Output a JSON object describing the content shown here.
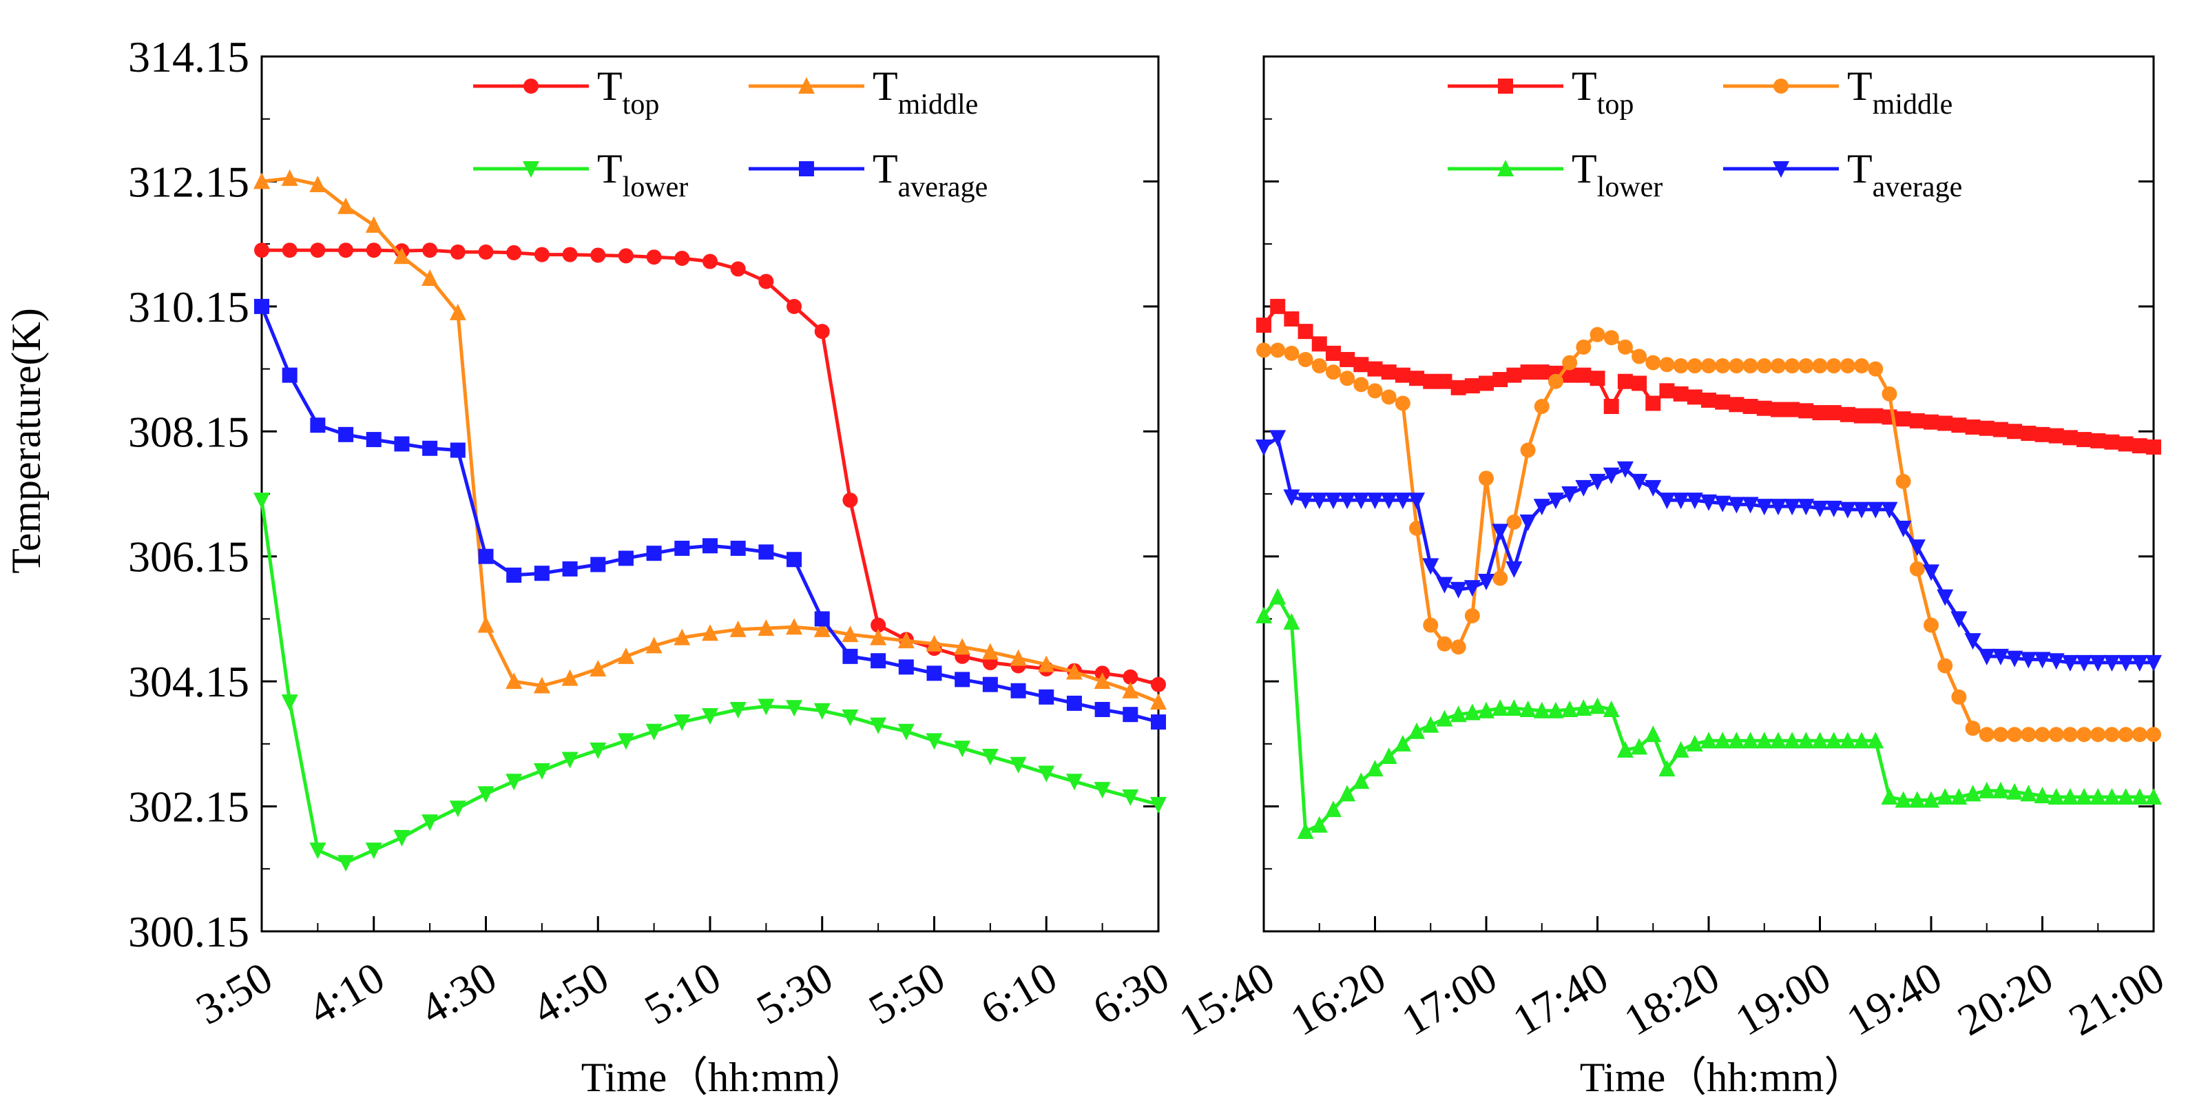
{
  "figure": {
    "ylabel": "Temperature(K)",
    "xlabel": "Time（hh:mm）"
  },
  "chart_data": [
    {
      "type": "line",
      "panel": "left",
      "xlabel": "Time（hh:mm）",
      "ylabel": "Temperature(K)",
      "x_ticks": [
        "3:50",
        "4:10",
        "4:30",
        "4:50",
        "5:10",
        "5:30",
        "5:50",
        "6:10",
        "6:30"
      ],
      "y_ticks": [
        "300.15",
        "302.15",
        "304.15",
        "306.15",
        "308.15",
        "310.15",
        "312.15",
        "314.15"
      ],
      "xlim_minutes": [
        230,
        390
      ],
      "ylim": [
        300.15,
        314.15
      ],
      "legend_position": "top-right",
      "grid": false,
      "series": [
        {
          "name": "T_top",
          "label_main": "T",
          "label_sub": "top",
          "color": "#ff1a1a",
          "marker": "circle",
          "x": [
            230,
            235,
            240,
            245,
            250,
            255,
            260,
            265,
            270,
            275,
            280,
            285,
            290,
            295,
            300,
            305,
            310,
            315,
            320,
            325,
            330,
            335,
            340,
            345,
            350,
            355,
            360,
            365,
            370,
            375,
            380,
            385,
            390
          ],
          "y": [
            311.05,
            311.05,
            311.05,
            311.05,
            311.05,
            311.04,
            311.05,
            311.02,
            311.02,
            311.01,
            310.98,
            310.98,
            310.97,
            310.96,
            310.94,
            310.92,
            310.87,
            310.75,
            310.55,
            310.15,
            309.75,
            307.05,
            305.05,
            304.82,
            304.68,
            304.55,
            304.45,
            304.4,
            304.35,
            304.32,
            304.28,
            304.22,
            304.1
          ],
          "marker_every": 1
        },
        {
          "name": "T_middle",
          "label_main": "T",
          "label_sub": "middle",
          "color": "#ff8c1a",
          "marker": "triangle-up",
          "x": [
            230,
            235,
            240,
            245,
            250,
            255,
            260,
            265,
            270,
            275,
            280,
            285,
            290,
            295,
            300,
            305,
            310,
            315,
            320,
            325,
            330,
            335,
            340,
            345,
            350,
            355,
            360,
            365,
            370,
            375,
            380,
            385,
            390
          ],
          "y": [
            312.15,
            312.2,
            312.1,
            311.75,
            311.45,
            310.95,
            310.6,
            310.05,
            305.05,
            304.15,
            304.08,
            304.2,
            304.35,
            304.55,
            304.72,
            304.85,
            304.92,
            304.98,
            305.0,
            305.02,
            304.98,
            304.9,
            304.85,
            304.8,
            304.75,
            304.7,
            304.62,
            304.52,
            304.42,
            304.3,
            304.15,
            304.0,
            303.82
          ],
          "marker_every": 1
        },
        {
          "name": "T_lower",
          "label_main": "T",
          "label_sub": "lower",
          "color": "#22ee22",
          "marker": "triangle-down",
          "x": [
            230,
            235,
            240,
            245,
            250,
            255,
            260,
            265,
            270,
            275,
            280,
            285,
            290,
            295,
            300,
            305,
            310,
            315,
            320,
            325,
            330,
            335,
            340,
            345,
            350,
            355,
            360,
            365,
            370,
            375,
            380,
            385,
            390
          ],
          "y": [
            307.05,
            303.82,
            301.45,
            301.25,
            301.45,
            301.65,
            301.9,
            302.12,
            302.35,
            302.55,
            302.72,
            302.9,
            303.05,
            303.2,
            303.35,
            303.5,
            303.6,
            303.7,
            303.75,
            303.73,
            303.68,
            303.58,
            303.45,
            303.35,
            303.2,
            303.08,
            302.95,
            302.82,
            302.68,
            302.55,
            302.42,
            302.3,
            302.18
          ],
          "marker_every": 1
        },
        {
          "name": "T_average",
          "label_main": "T",
          "label_sub": "average",
          "color": "#1a1aff",
          "marker": "square",
          "x": [
            230,
            235,
            240,
            245,
            250,
            255,
            260,
            265,
            270,
            275,
            280,
            285,
            290,
            295,
            300,
            305,
            310,
            315,
            320,
            325,
            330,
            335,
            340,
            345,
            350,
            355,
            360,
            365,
            370,
            375,
            380,
            385,
            390
          ],
          "y": [
            310.15,
            309.05,
            308.25,
            308.1,
            308.02,
            307.95,
            307.88,
            307.85,
            306.15,
            305.85,
            305.88,
            305.95,
            306.02,
            306.12,
            306.2,
            306.28,
            306.32,
            306.28,
            306.22,
            306.1,
            305.15,
            304.55,
            304.48,
            304.38,
            304.28,
            304.18,
            304.1,
            304.0,
            303.9,
            303.8,
            303.7,
            303.62,
            303.5
          ],
          "marker_every": 1
        }
      ]
    },
    {
      "type": "line",
      "panel": "right",
      "xlabel": "Time（hh:mm）",
      "x_ticks": [
        "15:40",
        "16:20",
        "17:00",
        "17:40",
        "18:20",
        "19:00",
        "19:40",
        "20:20",
        "21:00"
      ],
      "xlim_minutes": [
        940,
        1260
      ],
      "ylim": [
        300.15,
        314.15
      ],
      "legend_position": "top-right",
      "grid": false,
      "series": [
        {
          "name": "T_top",
          "label_main": "T",
          "label_sub": "top",
          "color": "#ff1a1a",
          "marker": "square",
          "x": [
            940,
            945,
            950,
            955,
            960,
            965,
            970,
            975,
            980,
            985,
            990,
            995,
            1000,
            1005,
            1010,
            1015,
            1020,
            1025,
            1030,
            1035,
            1040,
            1045,
            1050,
            1055,
            1060,
            1065,
            1070,
            1075,
            1080,
            1085,
            1090,
            1095,
            1100,
            1105,
            1110,
            1115,
            1120,
            1125,
            1130,
            1135,
            1140,
            1145,
            1150,
            1155,
            1160,
            1165,
            1170,
            1175,
            1180,
            1185,
            1190,
            1195,
            1200,
            1205,
            1210,
            1215,
            1220,
            1225,
            1230,
            1235,
            1240,
            1245,
            1250,
            1255,
            1260
          ],
          "y": [
            309.85,
            310.15,
            309.95,
            309.75,
            309.55,
            309.4,
            309.3,
            309.22,
            309.15,
            309.1,
            309.05,
            309.0,
            308.95,
            308.95,
            308.85,
            308.88,
            308.92,
            308.98,
            309.05,
            309.1,
            309.1,
            309.08,
            309.05,
            309.05,
            309.0,
            308.55,
            308.95,
            308.92,
            308.6,
            308.8,
            308.75,
            308.7,
            308.65,
            308.62,
            308.58,
            308.55,
            308.52,
            308.5,
            308.5,
            308.48,
            308.45,
            308.45,
            308.42,
            308.4,
            308.4,
            308.38,
            308.35,
            308.32,
            308.3,
            308.28,
            308.25,
            308.22,
            308.2,
            308.18,
            308.15,
            308.12,
            308.1,
            308.08,
            308.05,
            308.02,
            308.0,
            307.98,
            307.95,
            307.92,
            307.9
          ],
          "marker_every": 1
        },
        {
          "name": "T_middle",
          "label_main": "T",
          "label_sub": "middle",
          "color": "#ff8c1a",
          "marker": "circle",
          "x": [
            940,
            945,
            950,
            955,
            960,
            965,
            970,
            975,
            980,
            985,
            990,
            995,
            1000,
            1005,
            1010,
            1015,
            1020,
            1025,
            1030,
            1035,
            1040,
            1045,
            1050,
            1055,
            1060,
            1065,
            1070,
            1075,
            1080,
            1085,
            1090,
            1095,
            1100,
            1105,
            1110,
            1115,
            1120,
            1125,
            1130,
            1135,
            1140,
            1145,
            1150,
            1155,
            1160,
            1165,
            1170,
            1175,
            1180,
            1185,
            1190,
            1195,
            1200,
            1205,
            1210,
            1215,
            1220,
            1225,
            1230,
            1235,
            1240,
            1245,
            1250,
            1255,
            1260
          ],
          "y": [
            309.45,
            309.45,
            309.4,
            309.3,
            309.2,
            309.1,
            309.0,
            308.9,
            308.8,
            308.7,
            308.6,
            306.6,
            305.05,
            304.75,
            304.7,
            305.2,
            307.4,
            305.8,
            306.7,
            307.85,
            308.55,
            308.95,
            309.25,
            309.5,
            309.7,
            309.65,
            309.5,
            309.35,
            309.25,
            309.22,
            309.2,
            309.2,
            309.2,
            309.2,
            309.2,
            309.2,
            309.2,
            309.2,
            309.2,
            309.2,
            309.2,
            309.2,
            309.2,
            309.2,
            309.15,
            308.75,
            307.35,
            305.95,
            305.05,
            304.4,
            303.9,
            303.4,
            303.3,
            303.3,
            303.3,
            303.3,
            303.3,
            303.3,
            303.3,
            303.3,
            303.3,
            303.3,
            303.3,
            303.3,
            303.3
          ],
          "marker_every": 1
        },
        {
          "name": "T_lower",
          "label_main": "T",
          "label_sub": "lower",
          "color": "#22ee22",
          "marker": "triangle-up",
          "x": [
            940,
            945,
            950,
            955,
            960,
            965,
            970,
            975,
            980,
            985,
            990,
            995,
            1000,
            1005,
            1010,
            1015,
            1020,
            1025,
            1030,
            1035,
            1040,
            1045,
            1050,
            1055,
            1060,
            1065,
            1070,
            1075,
            1080,
            1085,
            1090,
            1095,
            1100,
            1105,
            1110,
            1115,
            1120,
            1125,
            1130,
            1135,
            1140,
            1145,
            1150,
            1155,
            1160,
            1165,
            1170,
            1175,
            1180,
            1185,
            1190,
            1195,
            1200,
            1205,
            1210,
            1215,
            1220,
            1225,
            1230,
            1235,
            1240,
            1245,
            1250,
            1255,
            1260
          ],
          "y": [
            305.2,
            305.5,
            305.1,
            301.75,
            301.85,
            302.1,
            302.35,
            302.55,
            302.75,
            302.95,
            303.15,
            303.35,
            303.45,
            303.55,
            303.62,
            303.65,
            303.68,
            303.72,
            303.72,
            303.7,
            303.68,
            303.68,
            303.7,
            303.72,
            303.75,
            303.7,
            303.05,
            303.1,
            303.3,
            302.75,
            303.05,
            303.15,
            303.2,
            303.2,
            303.2,
            303.2,
            303.2,
            303.2,
            303.2,
            303.2,
            303.2,
            303.2,
            303.2,
            303.2,
            303.2,
            302.3,
            302.25,
            302.25,
            302.25,
            302.3,
            302.3,
            302.35,
            302.4,
            302.4,
            302.38,
            302.35,
            302.32,
            302.3,
            302.3,
            302.3,
            302.3,
            302.3,
            302.3,
            302.3,
            302.3
          ],
          "marker_every": 1
        },
        {
          "name": "T_average",
          "label_main": "T",
          "label_sub": "average",
          "color": "#1a1aff",
          "marker": "triangle-down",
          "x": [
            940,
            945,
            950,
            955,
            960,
            965,
            970,
            975,
            980,
            985,
            990,
            995,
            1000,
            1005,
            1010,
            1015,
            1020,
            1025,
            1030,
            1035,
            1040,
            1045,
            1050,
            1055,
            1060,
            1065,
            1070,
            1075,
            1080,
            1085,
            1090,
            1095,
            1100,
            1105,
            1110,
            1115,
            1120,
            1125,
            1130,
            1135,
            1140,
            1145,
            1150,
            1155,
            1160,
            1165,
            1170,
            1175,
            1180,
            1185,
            1190,
            1195,
            1200,
            1205,
            1210,
            1215,
            1220,
            1225,
            1230,
            1235,
            1240,
            1245,
            1250,
            1255,
            1260
          ],
          "y": [
            307.9,
            308.05,
            307.1,
            307.05,
            307.05,
            307.05,
            307.05,
            307.05,
            307.05,
            307.05,
            307.05,
            307.05,
            306.0,
            305.7,
            305.62,
            305.65,
            305.75,
            306.55,
            305.95,
            306.7,
            306.95,
            307.05,
            307.15,
            307.25,
            307.35,
            307.45,
            307.55,
            307.35,
            307.25,
            307.05,
            307.05,
            307.05,
            307.02,
            307.0,
            306.98,
            306.98,
            306.95,
            306.95,
            306.95,
            306.95,
            306.92,
            306.92,
            306.9,
            306.9,
            306.9,
            306.9,
            306.6,
            306.3,
            305.9,
            305.5,
            305.15,
            304.8,
            304.55,
            304.55,
            304.52,
            304.5,
            304.5,
            304.48,
            304.45,
            304.45,
            304.45,
            304.45,
            304.45,
            304.45,
            304.45
          ],
          "marker_every": 1
        }
      ]
    }
  ]
}
